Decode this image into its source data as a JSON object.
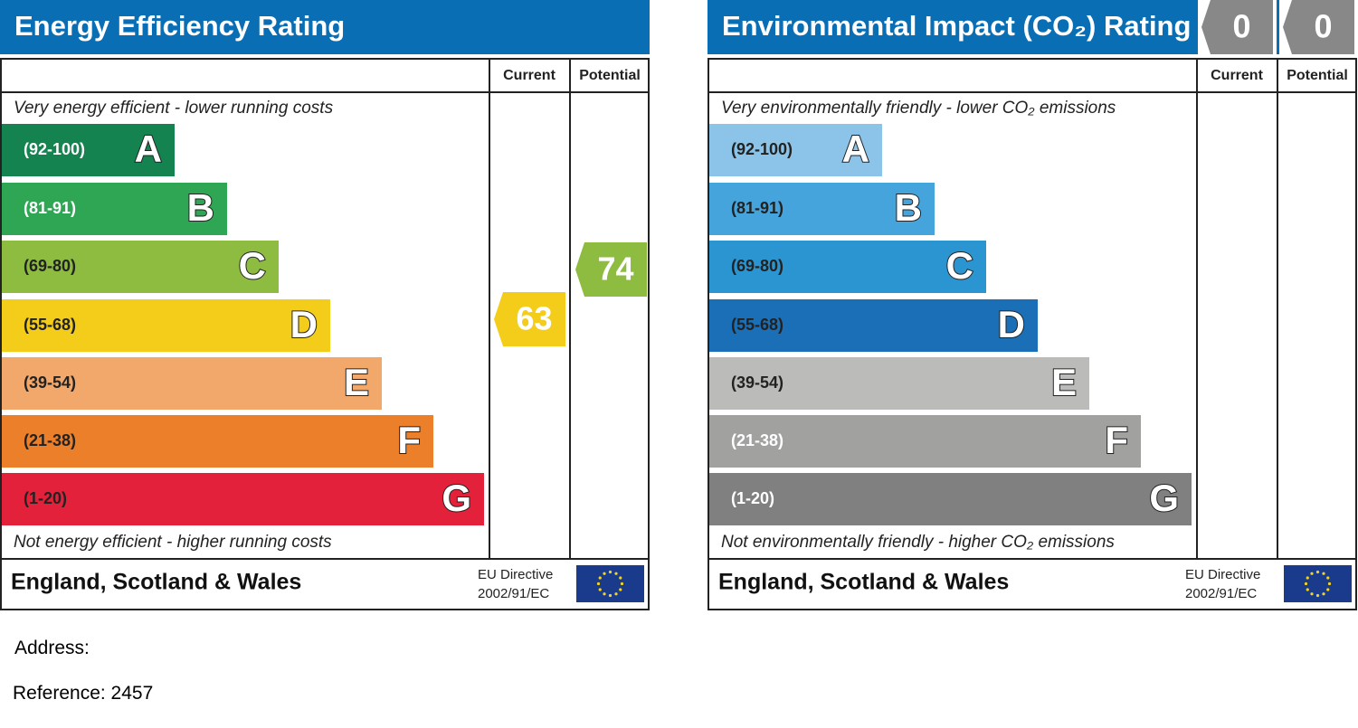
{
  "panels": [
    {
      "title": "Energy Efficiency Rating",
      "current_label": "Current",
      "potential_label": "Potential",
      "top_note": "Very energy efficient - lower running costs",
      "bottom_note": "Not energy efficient - higher running costs",
      "bands": [
        {
          "range": "(92-100)",
          "letter": "A",
          "color": "#15834f",
          "text_color": "#ffffff"
        },
        {
          "range": "(81-91)",
          "letter": "B",
          "color": "#2fa654",
          "text_color": "#ffffff"
        },
        {
          "range": "(69-80)",
          "letter": "C",
          "color": "#8dbc40",
          "text_color": "#222222"
        },
        {
          "range": "(55-68)",
          "letter": "D",
          "color": "#f4cd1a",
          "text_color": "#222222"
        },
        {
          "range": "(39-54)",
          "letter": "E",
          "color": "#f2a86b",
          "text_color": "#222222"
        },
        {
          "range": "(21-38)",
          "letter": "F",
          "color": "#ec7f2a",
          "text_color": "#222222"
        },
        {
          "range": "(1-20)",
          "letter": "G",
          "color": "#e3213b",
          "text_color": "#222222"
        }
      ],
      "current": 63,
      "potential": 74,
      "region": "England, Scotland & Wales",
      "directive": [
        "EU Directive",
        "2002/91/EC"
      ]
    },
    {
      "title": "Environmental Impact (CO₂) Rating",
      "current_label": "Current",
      "potential_label": "Potential",
      "top_note": "Very environmentally friendly - lower CO₂ emissions",
      "bottom_note": "Not environmentally friendly - higher CO₂ emissions",
      "bands": [
        {
          "range": "(92-100)",
          "letter": "A",
          "color": "#8bc4e8",
          "text_color": "#222222"
        },
        {
          "range": "(81-91)",
          "letter": "B",
          "color": "#45a4dc",
          "text_color": "#222222"
        },
        {
          "range": "(69-80)",
          "letter": "C",
          "color": "#2b95d1",
          "text_color": "#222222"
        },
        {
          "range": "(55-68)",
          "letter": "D",
          "color": "#1a6fb7",
          "text_color": "#222222"
        },
        {
          "range": "(39-54)",
          "letter": "E",
          "color": "#bbbbb9",
          "text_color": "#222222"
        },
        {
          "range": "(21-38)",
          "letter": "F",
          "color": "#a1a1a0",
          "text_color": "#ffffff"
        },
        {
          "range": "(1-20)",
          "letter": "G",
          "color": "#808080",
          "text_color": "#ffffff"
        }
      ],
      "current": 0,
      "potential": 0,
      "region": "England, Scotland & Wales",
      "directive": [
        "EU Directive",
        "2002/91/EC"
      ]
    }
  ],
  "address_label": "Address:",
  "reference": "Reference: 2457"
}
